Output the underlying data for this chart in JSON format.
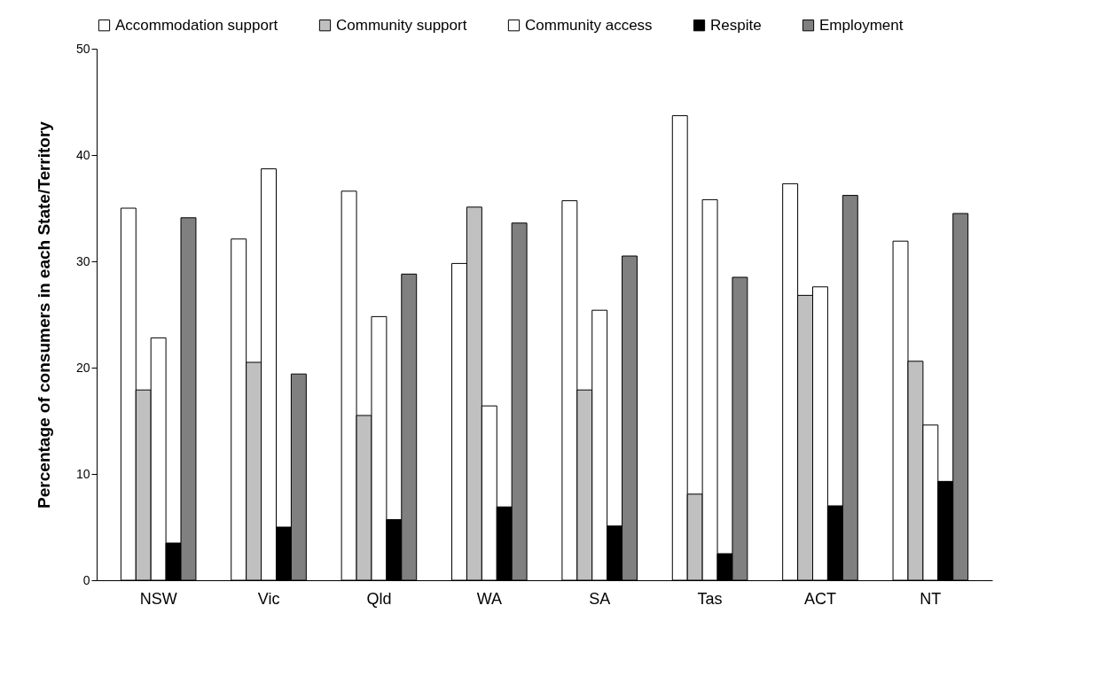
{
  "chart_data": {
    "type": "bar",
    "ylabel": "Percentage of consumers in each State/Territory",
    "categories": [
      "NSW",
      "Vic",
      "Qld",
      "WA",
      "SA",
      "Tas",
      "ACT",
      "NT"
    ],
    "series": [
      {
        "name": "Accommodation support",
        "color": "#ffffff",
        "values": [
          35.0,
          32.1,
          36.6,
          29.8,
          35.7,
          43.7,
          37.3,
          31.9
        ]
      },
      {
        "name": "Community support",
        "color": "#c0c0c0",
        "values": [
          17.9,
          20.5,
          15.5,
          35.1,
          17.9,
          8.1,
          26.8,
          20.6
        ]
      },
      {
        "name": "Community access",
        "color": "#ffffff",
        "values": [
          22.8,
          38.7,
          24.8,
          16.4,
          25.4,
          35.8,
          27.6,
          14.6
        ]
      },
      {
        "name": "Respite",
        "color": "#000000",
        "values": [
          3.5,
          5.0,
          5.7,
          6.9,
          5.1,
          2.5,
          7.0,
          9.3
        ]
      },
      {
        "name": "Employment",
        "color": "#808080",
        "values": [
          34.1,
          19.4,
          28.8,
          33.6,
          30.5,
          28.5,
          36.2,
          34.5
        ]
      }
    ],
    "ylim": [
      0,
      50
    ],
    "yticks": [
      0,
      10,
      20,
      30,
      40,
      50
    ],
    "grid": false,
    "legend": "top"
  }
}
